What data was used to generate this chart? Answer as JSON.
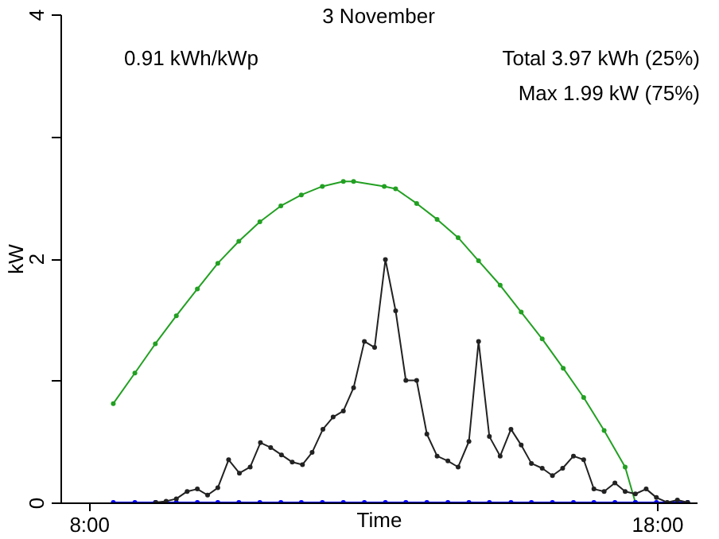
{
  "chart_data": {
    "type": "line",
    "title": "3 November",
    "xlabel": "Time",
    "ylabel": "kW",
    "annotations": [
      "0.91 kWh/kWp",
      "Total 3.97 kWh (25%)",
      "Max 1.99 kW (75%)"
    ],
    "xlim": [
      7.5,
      18.7
    ],
    "xticks": [
      {
        "value": 8,
        "label": "8:00"
      },
      {
        "value": 18,
        "label": "18:00"
      }
    ],
    "ylim": [
      0,
      4
    ],
    "yticks": [
      0,
      {
        "value": 1,
        "label": null
      },
      2,
      {
        "value": 3,
        "label": null
      },
      4
    ],
    "grid": false,
    "marker": "circle",
    "line_style": "solid",
    "series": [
      {
        "color": "#22a022",
        "x": [
          8.43,
          8.81,
          9.17,
          9.54,
          9.91,
          10.27,
          10.64,
          11.01,
          11.38,
          11.74,
          12.11,
          12.48,
          12.66,
          13.2,
          13.4,
          13.77,
          14.13,
          14.5,
          14.86,
          15.24,
          15.61,
          15.98,
          16.35,
          16.71,
          17.07,
          17.44,
          17.62
        ],
        "values": [
          0.81,
          1.06,
          1.3,
          1.53,
          1.75,
          1.96,
          2.14,
          2.3,
          2.43,
          2.52,
          2.59,
          2.63,
          2.63,
          2.59,
          2.57,
          2.45,
          2.32,
          2.17,
          1.98,
          1.78,
          1.56,
          1.34,
          1.1,
          0.86,
          0.59,
          0.29,
          0
        ]
      },
      {
        "color": "#0000ff",
        "x": [
          8.43,
          8.81,
          9.17,
          9.54,
          9.91,
          10.27,
          10.64,
          11.01,
          11.38,
          11.74,
          12.11,
          12.48,
          12.85,
          13.22,
          13.58,
          13.95,
          14.32,
          14.69,
          15.05,
          15.43,
          15.79,
          16.16,
          16.53,
          16.89,
          17.26,
          17.62,
          17.99,
          18.36,
          18.54
        ],
        "values": [
          0,
          0,
          0,
          0,
          0,
          0,
          0,
          0,
          0,
          0,
          0,
          0,
          0,
          0,
          0,
          0,
          0,
          0,
          0,
          0,
          0,
          0,
          0,
          0,
          0,
          0,
          0,
          0,
          0
        ]
      },
      {
        "color": "#222222",
        "x": [
          9.18,
          9.36,
          9.54,
          9.73,
          9.91,
          10.09,
          10.27,
          10.46,
          10.65,
          10.84,
          11.02,
          11.2,
          11.39,
          11.58,
          11.76,
          11.93,
          12.12,
          12.3,
          12.48,
          12.66,
          12.85,
          13.03,
          13.22,
          13.4,
          13.58,
          13.77,
          13.95,
          14.13,
          14.32,
          14.5,
          14.69,
          14.86,
          15.05,
          15.24,
          15.43,
          15.61,
          15.79,
          15.98,
          16.16,
          16.34,
          16.53,
          16.71,
          16.89,
          17.07,
          17.26,
          17.44,
          17.62,
          17.81,
          17.99,
          18.18,
          18.36,
          18.54
        ],
        "values": [
          0,
          0.01,
          0.03,
          0.09,
          0.11,
          0.06,
          0.12,
          0.35,
          0.24,
          0.29,
          0.49,
          0.45,
          0.39,
          0.33,
          0.31,
          0.41,
          0.6,
          0.7,
          0.75,
          0.94,
          1.32,
          1.27,
          1.99,
          1.57,
          1.0,
          1.0,
          0.56,
          0.38,
          0.34,
          0.29,
          0.5,
          1.32,
          0.54,
          0.38,
          0.6,
          0.47,
          0.32,
          0.28,
          0.22,
          0.28,
          0.38,
          0.35,
          0.11,
          0.09,
          0.16,
          0.09,
          0.07,
          0.11,
          0.04,
          0,
          0.02,
          0
        ]
      }
    ]
  }
}
